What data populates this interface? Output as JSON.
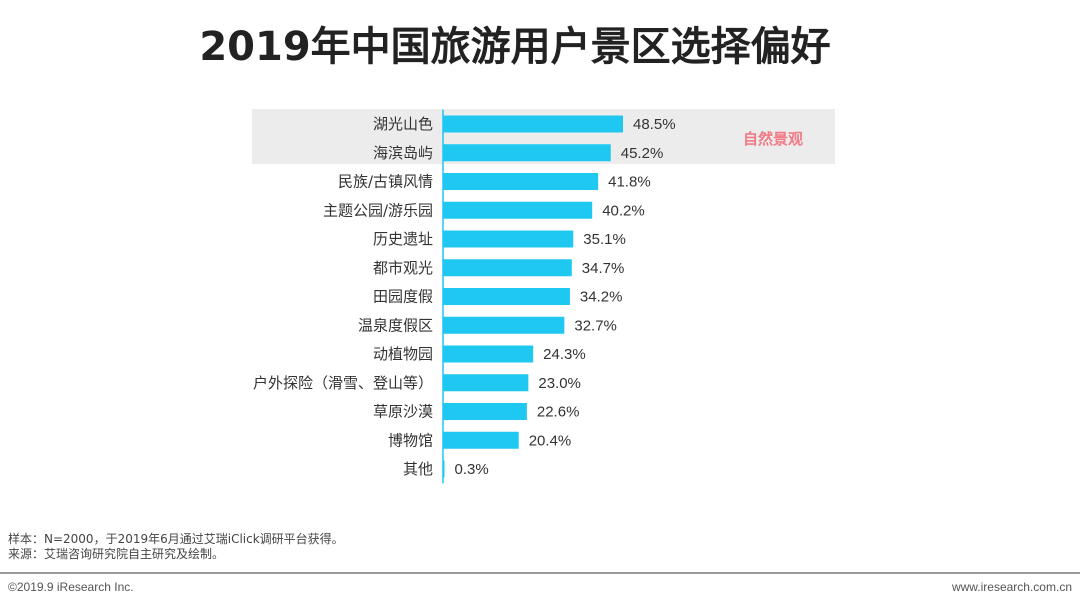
{
  "title": "2019年中国旅游用户景区选择偏好",
  "highlight_label": "自然景观",
  "colors": {
    "bar": "#1ec8f0",
    "axis": "#1ec8f0",
    "highlight_bg": "#ececec",
    "highlight_text": "#f07a86"
  },
  "chart_data": {
    "type": "bar",
    "orientation": "horizontal",
    "categories": [
      "湖光山色",
      "海滨岛屿",
      "民族/古镇风情",
      "主题公园/游乐园",
      "历史遗址",
      "都市观光",
      "田园度假",
      "温泉度假区",
      "动植物园",
      "户外探险（滑雪、登山等）",
      "草原沙漠",
      "博物馆",
      "其他"
    ],
    "values": [
      48.5,
      45.2,
      41.8,
      40.2,
      35.1,
      34.7,
      34.2,
      32.7,
      24.3,
      23.0,
      22.6,
      20.4,
      0.3
    ],
    "value_labels": [
      "48.5%",
      "45.2%",
      "41.8%",
      "40.2%",
      "35.1%",
      "34.7%",
      "34.2%",
      "32.7%",
      "24.3%",
      "23.0%",
      "22.6%",
      "20.4%",
      "0.3%"
    ],
    "xlim": [
      0,
      60
    ],
    "grid": false
  },
  "notes": {
    "sample": "样本：N=2000，于2019年6月通过艾瑞iClick调研平台获得。",
    "source": "来源：艾瑞咨询研究院自主研究及绘制。"
  },
  "footer": {
    "copyright": "©2019.9 iResearch Inc.",
    "website": "www.iresearch.com.cn"
  }
}
